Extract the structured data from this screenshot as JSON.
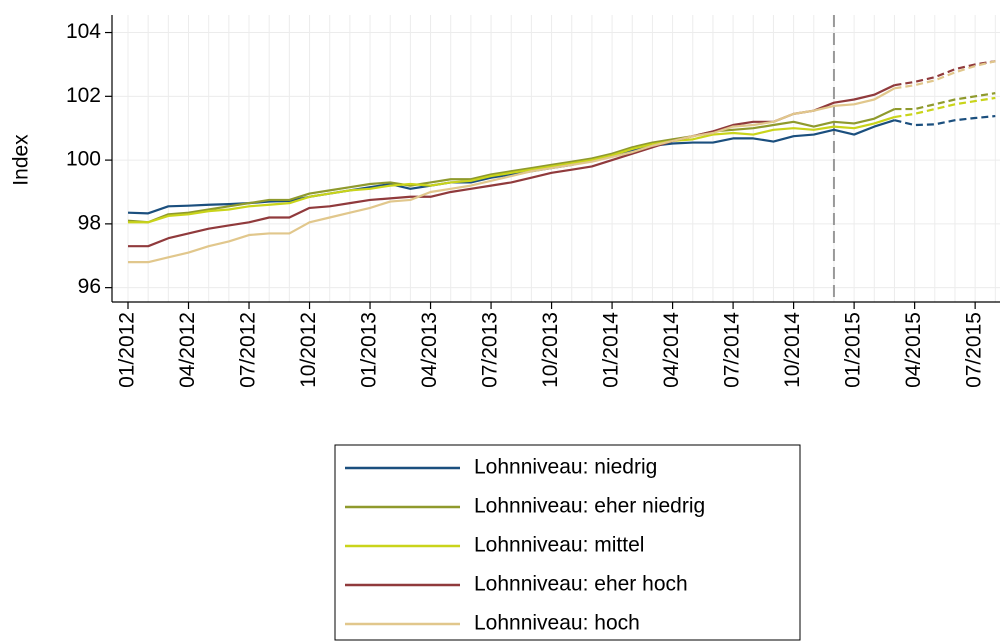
{
  "chart_data": {
    "type": "line",
    "y_label": "Index",
    "categories": [
      "01/2012",
      "02/2012",
      "03/2012",
      "04/2012",
      "05/2012",
      "06/2012",
      "07/2012",
      "08/2012",
      "09/2012",
      "10/2012",
      "11/2012",
      "12/2012",
      "01/2013",
      "02/2013",
      "03/2013",
      "04/2013",
      "05/2013",
      "06/2013",
      "07/2013",
      "08/2013",
      "09/2013",
      "10/2013",
      "11/2013",
      "12/2013",
      "01/2014",
      "02/2014",
      "03/2014",
      "04/2014",
      "05/2014",
      "06/2014",
      "07/2014",
      "08/2014",
      "09/2014",
      "10/2014",
      "11/2014",
      "12/2014",
      "01/2015",
      "02/2015",
      "03/2015",
      "04/2015",
      "05/2015",
      "06/2015",
      "07/2015",
      "08/2015"
    ],
    "xticks": [
      "01/2012",
      "04/2012",
      "07/2012",
      "10/2012",
      "01/2013",
      "04/2013",
      "07/2013",
      "10/2013",
      "01/2014",
      "04/2014",
      "07/2014",
      "10/2014",
      "01/2015",
      "04/2015",
      "07/2015"
    ],
    "vline": "12/2014",
    "dashed_from": "04/2015",
    "ylim": [
      95.55,
      104.55
    ],
    "yticks": [
      96,
      98,
      100,
      102,
      104
    ],
    "grid": true,
    "series": [
      {
        "name": "Lohnniveau: niedrig",
        "color": "#1b4f7e",
        "values": [
          98.35,
          98.33,
          98.55,
          98.57,
          98.6,
          98.62,
          98.65,
          98.7,
          98.72,
          98.85,
          98.95,
          99.05,
          99.15,
          99.25,
          99.1,
          99.2,
          99.3,
          99.3,
          99.45,
          99.55,
          99.65,
          99.75,
          99.85,
          100.0,
          100.15,
          100.3,
          100.45,
          100.52,
          100.55,
          100.55,
          100.68,
          100.68,
          100.58,
          100.75,
          100.8,
          100.95,
          100.8,
          101.05,
          101.25,
          101.1,
          101.12,
          101.25,
          101.32,
          101.38
        ]
      },
      {
        "name": "Lohnniveau: eher niedrig",
        "color": "#8f9a2d",
        "values": [
          98.1,
          98.05,
          98.3,
          98.35,
          98.45,
          98.55,
          98.65,
          98.75,
          98.75,
          98.95,
          99.05,
          99.15,
          99.25,
          99.3,
          99.2,
          99.3,
          99.4,
          99.4,
          99.55,
          99.65,
          99.75,
          99.85,
          99.95,
          100.05,
          100.2,
          100.4,
          100.55,
          100.65,
          100.75,
          100.9,
          100.95,
          101.0,
          101.1,
          101.2,
          101.05,
          101.2,
          101.15,
          101.3,
          101.6,
          101.6,
          101.75,
          101.9,
          102.0,
          102.1
        ]
      },
      {
        "name": "Lohnniveau: mittel",
        "color": "#c9d41a",
        "values": [
          98.05,
          98.05,
          98.25,
          98.3,
          98.4,
          98.45,
          98.55,
          98.6,
          98.65,
          98.85,
          98.95,
          99.05,
          99.1,
          99.2,
          99.25,
          99.2,
          99.3,
          99.35,
          99.5,
          99.6,
          99.7,
          99.8,
          99.9,
          100.0,
          100.15,
          100.35,
          100.5,
          100.6,
          100.65,
          100.8,
          100.85,
          100.8,
          100.95,
          101.0,
          100.95,
          101.05,
          101.0,
          101.15,
          101.35,
          101.45,
          101.6,
          101.75,
          101.85,
          101.95
        ]
      },
      {
        "name": "Lohnniveau: eher hoch",
        "color": "#903a3c",
        "values": [
          97.3,
          97.3,
          97.55,
          97.7,
          97.85,
          97.95,
          98.05,
          98.2,
          98.2,
          98.5,
          98.55,
          98.65,
          98.75,
          98.8,
          98.85,
          98.85,
          99.0,
          99.1,
          99.2,
          99.3,
          99.45,
          99.6,
          99.7,
          99.8,
          100.0,
          100.2,
          100.4,
          100.6,
          100.75,
          100.9,
          101.1,
          101.2,
          101.2,
          101.45,
          101.55,
          101.8,
          101.9,
          102.05,
          102.35,
          102.45,
          102.6,
          102.85,
          103.0,
          103.1
        ]
      },
      {
        "name": "Lohnniveau: hoch",
        "color": "#e1c78c",
        "values": [
          96.8,
          96.8,
          96.95,
          97.1,
          97.3,
          97.45,
          97.65,
          97.7,
          97.7,
          98.05,
          98.2,
          98.35,
          98.5,
          98.7,
          98.75,
          99.0,
          99.1,
          99.2,
          99.35,
          99.5,
          99.65,
          99.75,
          99.85,
          99.95,
          100.1,
          100.25,
          100.45,
          100.6,
          100.75,
          100.85,
          101.05,
          101.1,
          101.2,
          101.45,
          101.55,
          101.7,
          101.75,
          101.9,
          102.25,
          102.35,
          102.5,
          102.75,
          102.95,
          103.1
        ]
      }
    ]
  }
}
